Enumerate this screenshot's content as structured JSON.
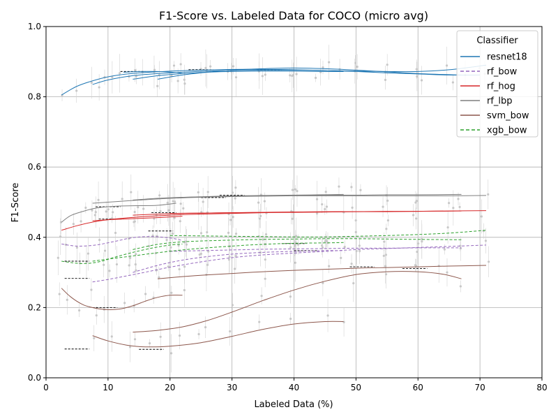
{
  "chart_data": {
    "type": "line",
    "title": "F1-Score vs. Labeled Data for COCO (micro avg)",
    "xlabel": "Labeled Data (%)",
    "ylabel": "F1-Score",
    "xlim": [
      0,
      80
    ],
    "ylim": [
      0.0,
      1.0
    ],
    "xticks": [
      "0",
      "10",
      "20",
      "30",
      "40",
      "50",
      "60",
      "70",
      "80"
    ],
    "yticks": [
      "0.0",
      "0.2",
      "0.4",
      "0.6",
      "0.8",
      "1.0"
    ],
    "grid": true,
    "legend": {
      "title": "Classifier",
      "placement": "top-right"
    },
    "series": [
      {
        "name": "resnet18",
        "color": "#1f77b4",
        "dash": "solid",
        "curves": [
          {
            "x": [
              2.5,
              5,
              8,
              11,
              15,
              20,
              25,
              30,
              35,
              40,
              45,
              50,
              55,
              60,
              65,
              70
            ],
            "y": [
              0.805,
              0.83,
              0.848,
              0.86,
              0.868,
              0.873,
              0.876,
              0.878,
              0.878,
              0.877,
              0.875,
              0.872,
              0.868,
              0.865,
              0.862,
              0.862
            ]
          },
          {
            "x": [
              7.5,
              10,
              14,
              18,
              22,
              26,
              30,
              35,
              40,
              45,
              50,
              55,
              60,
              65,
              71
            ],
            "y": [
              0.835,
              0.848,
              0.86,
              0.866,
              0.87,
              0.873,
              0.875,
              0.876,
              0.876,
              0.875,
              0.873,
              0.872,
              0.872,
              0.877,
              0.89
            ]
          },
          {
            "x": [
              12.5,
              15,
              18,
              21,
              22
            ],
            "y": [
              0.87,
              0.872,
              0.872,
              0.869,
              0.866
            ]
          },
          {
            "x": [
              14,
              18,
              22,
              26,
              30,
              35,
              40,
              44,
              48
            ],
            "y": [
              0.85,
              0.86,
              0.866,
              0.87,
              0.872,
              0.873,
              0.873,
              0.872,
              0.872
            ]
          },
          {
            "x": [
              18,
              22,
              26,
              30,
              35,
              40,
              45,
              50,
              55,
              60,
              67
            ],
            "y": [
              0.85,
              0.862,
              0.87,
              0.876,
              0.88,
              0.882,
              0.88,
              0.876,
              0.871,
              0.866,
              0.862
            ]
          }
        ]
      },
      {
        "name": "rf_bow",
        "color": "#9467bd",
        "dash": "dashed",
        "curves": [
          {
            "x": [
              2.5,
              5,
              8,
              11,
              14,
              17,
              20,
              22
            ],
            "y": [
              0.381,
              0.375,
              0.378,
              0.388,
              0.399,
              0.402,
              0.398,
              0.391
            ]
          },
          {
            "x": [
              7.5,
              10,
              15,
              20,
              25,
              30,
              35,
              40,
              45,
              50,
              55,
              60,
              65,
              71
            ],
            "y": [
              0.273,
              0.28,
              0.297,
              0.315,
              0.33,
              0.342,
              0.35,
              0.355,
              0.36,
              0.365,
              0.368,
              0.371,
              0.374,
              0.378
            ]
          },
          {
            "x": [
              14,
              18,
              22,
              26,
              30,
              35,
              40,
              45,
              48
            ],
            "y": [
              0.3,
              0.32,
              0.335,
              0.345,
              0.352,
              0.357,
              0.36,
              0.362,
              0.362
            ]
          },
          {
            "x": [
              20,
              25,
              30,
              35,
              40,
              45,
              50,
              55,
              60,
              67
            ],
            "y": [
              0.36,
              0.362,
              0.364,
              0.366,
              0.367,
              0.368,
              0.369,
              0.369,
              0.37,
              0.37
            ]
          }
        ]
      },
      {
        "name": "rf_hog",
        "color": "#d62728",
        "dash": "solid",
        "curves": [
          {
            "x": [
              2.5,
              5,
              8,
              11,
              15,
              20,
              25,
              30,
              35,
              40,
              45,
              50,
              55,
              60,
              65,
              71
            ],
            "y": [
              0.42,
              0.433,
              0.445,
              0.452,
              0.458,
              0.463,
              0.466,
              0.468,
              0.47,
              0.471,
              0.472,
              0.473,
              0.473,
              0.474,
              0.475,
              0.476
            ]
          },
          {
            "x": [
              7.5,
              10,
              14,
              18,
              22
            ],
            "y": [
              0.447,
              0.45,
              0.453,
              0.456,
              0.46
            ]
          },
          {
            "x": [
              14,
              18,
              22,
              26,
              30,
              35,
              40,
              44,
              48
            ],
            "y": [
              0.463,
              0.466,
              0.468,
              0.469,
              0.47,
              0.471,
              0.472,
              0.472,
              0.473
            ]
          },
          {
            "x": [
              20,
              25,
              30,
              35,
              40,
              45,
              50,
              55,
              60,
              67
            ],
            "y": [
              0.468,
              0.469,
              0.47,
              0.471,
              0.472,
              0.473,
              0.473,
              0.474,
              0.474,
              0.475
            ]
          }
        ]
      },
      {
        "name": "rf_lbp",
        "color": "#7f7f7f",
        "dash": "solid",
        "curves": [
          {
            "x": [
              2.5,
              4,
              6,
              8,
              10,
              12,
              15,
              18,
              21
            ],
            "y": [
              0.443,
              0.462,
              0.474,
              0.483,
              0.487,
              0.489,
              0.49,
              0.491,
              0.497
            ]
          },
          {
            "x": [
              7.5,
              10,
              15,
              20,
              25,
              30,
              35,
              40,
              45,
              50,
              55,
              60,
              65,
              71
            ],
            "y": [
              0.497,
              0.5,
              0.506,
              0.511,
              0.514,
              0.516,
              0.517,
              0.518,
              0.518,
              0.518,
              0.518,
              0.518,
              0.518,
              0.519
            ]
          },
          {
            "x": [
              14,
              18,
              22,
              26,
              30,
              35,
              40,
              44,
              48
            ],
            "y": [
              0.506,
              0.511,
              0.514,
              0.516,
              0.518,
              0.519,
              0.52,
              0.521,
              0.522
            ]
          },
          {
            "x": [
              20,
              25,
              30,
              35,
              40,
              45,
              50,
              55,
              60,
              67
            ],
            "y": [
              0.512,
              0.515,
              0.517,
              0.518,
              0.519,
              0.52,
              0.52,
              0.521,
              0.521,
              0.522
            ]
          }
        ]
      },
      {
        "name": "svm_bow",
        "color": "#8c564b",
        "dash": "solid",
        "curves": [
          {
            "x": [
              2.5,
              4,
              6,
              8,
              10,
              12,
              14,
              16,
              18,
              20,
              22
            ],
            "y": [
              0.255,
              0.23,
              0.208,
              0.198,
              0.194,
              0.196,
              0.205,
              0.218,
              0.229,
              0.235,
              0.235
            ]
          },
          {
            "x": [
              7.5,
              10,
              13,
              16,
              20,
              25,
              30,
              35,
              40,
              45,
              48
            ],
            "y": [
              0.12,
              0.105,
              0.093,
              0.088,
              0.09,
              0.1,
              0.118,
              0.138,
              0.153,
              0.16,
              0.16
            ]
          },
          {
            "x": [
              14,
              18,
              22,
              26,
              30,
              35,
              40,
              45,
              50,
              55,
              60,
              64,
              67
            ],
            "y": [
              0.13,
              0.135,
              0.145,
              0.163,
              0.187,
              0.22,
              0.25,
              0.275,
              0.294,
              0.302,
              0.302,
              0.295,
              0.282
            ]
          },
          {
            "x": [
              18,
              22,
              26,
              30,
              35,
              40,
              45,
              50,
              55,
              60,
              65,
              71
            ],
            "y": [
              0.282,
              0.288,
              0.293,
              0.297,
              0.302,
              0.306,
              0.309,
              0.312,
              0.314,
              0.316,
              0.318,
              0.32
            ]
          }
        ]
      },
      {
        "name": "xgb_bow",
        "color": "#2ca02c",
        "dash": "dashed",
        "curves": [
          {
            "x": [
              2.5,
              5,
              7,
              9,
              11,
              14,
              17,
              20,
              22
            ],
            "y": [
              0.332,
              0.326,
              0.326,
              0.332,
              0.343,
              0.357,
              0.369,
              0.378,
              0.381
            ]
          },
          {
            "x": [
              7.5,
              10,
              14,
              18,
              22,
              26,
              30,
              35,
              40,
              45,
              48
            ],
            "y": [
              0.332,
              0.338,
              0.347,
              0.356,
              0.364,
              0.37,
              0.375,
              0.38,
              0.383,
              0.384,
              0.385
            ]
          },
          {
            "x": [
              14,
              18,
              22,
              26,
              30,
              35,
              40,
              45,
              50,
              55,
              60,
              67
            ],
            "y": [
              0.365,
              0.38,
              0.387,
              0.39,
              0.392,
              0.394,
              0.395,
              0.396,
              0.396,
              0.395,
              0.394,
              0.393
            ]
          },
          {
            "x": [
              20,
              25,
              30,
              35,
              40,
              45,
              50,
              55,
              60,
              65,
              71
            ],
            "y": [
              0.405,
              0.404,
              0.403,
              0.402,
              0.401,
              0.401,
              0.403,
              0.405,
              0.408,
              0.412,
              0.42
            ]
          }
        ]
      }
    ],
    "reference_marks": [
      {
        "x0": 12,
        "x1": 16,
        "y": 0.872
      },
      {
        "x0": 23,
        "x1": 27,
        "y": 0.877
      },
      {
        "x0": 34,
        "x1": 38,
        "y": 0.876
      },
      {
        "x0": 8,
        "x1": 12,
        "y": 0.487
      },
      {
        "x0": 25,
        "x1": 29,
        "y": 0.513
      },
      {
        "x0": 28,
        "x1": 32,
        "y": 0.52
      },
      {
        "x0": 17,
        "x1": 21,
        "y": 0.47
      },
      {
        "x0": 32,
        "x1": 36,
        "y": 0.47
      },
      {
        "x0": 8.5,
        "x1": 12.5,
        "y": 0.452
      },
      {
        "x0": 16.5,
        "x1": 20.5,
        "y": 0.418
      },
      {
        "x0": 3,
        "x1": 7,
        "y": 0.332
      },
      {
        "x0": 3,
        "x1": 7,
        "y": 0.283
      },
      {
        "x0": 38,
        "x1": 42,
        "y": 0.382
      },
      {
        "x0": 40,
        "x1": 44,
        "y": 0.362
      },
      {
        "x0": 49,
        "x1": 53,
        "y": 0.316
      },
      {
        "x0": 57.5,
        "x1": 61.5,
        "y": 0.311
      },
      {
        "x0": 7.5,
        "x1": 11.5,
        "y": 0.2
      },
      {
        "x0": 15,
        "x1": 19,
        "y": 0.081
      },
      {
        "x0": 3,
        "x1": 7,
        "y": 0.082
      }
    ]
  }
}
